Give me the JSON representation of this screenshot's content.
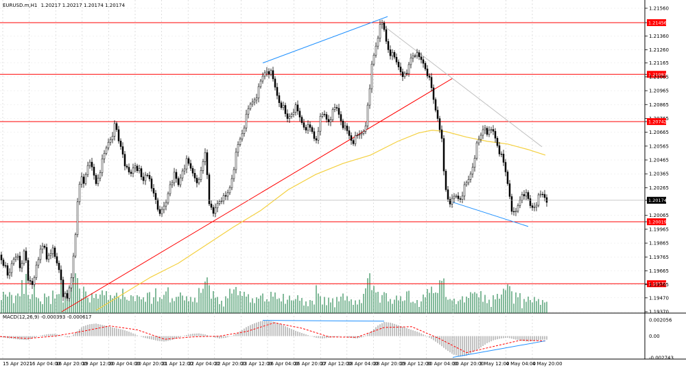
{
  "header": {
    "symbol_label": "EURUSD.m,H1",
    "ohlc_label": "1.20217 1.20217 1.20174 1.20174"
  },
  "macd_label": "MACD(12,26,9) -0.000393 -0.000617",
  "chart_data": {
    "type": "candlestick",
    "symbol": "EURUSD.m",
    "timeframe": "H1",
    "current_price": 1.20174,
    "price_axis_ticks": [
      1.2156,
      1.21456,
      1.2136,
      1.2126,
      1.21165,
      1.21083,
      1.21065,
      1.20965,
      1.20865,
      1.20765,
      1.20742,
      1.20665,
      1.20565,
      1.20465,
      1.20365,
      1.20265,
      1.20174,
      1.20065,
      1.20019,
      1.19965,
      1.19865,
      1.19765,
      1.19665,
      1.19572,
      1.19565,
      1.1947,
      1.1937
    ],
    "horizontal_levels": [
      1.21456,
      1.21083,
      1.20742,
      1.20019,
      1.19572
    ],
    "time_labels": [
      "15 Apr 2021",
      "16 Apr 04:00",
      "16 Apr 20:00",
      "19 Apr 12:00",
      "20 Apr 04:00",
      "20 Apr 20:00",
      "21 Apr 12:00",
      "22 Apr 04:00",
      "22 Apr 20:00",
      "23 Apr 12:00",
      "26 Apr 04:00",
      "26 Apr 20:00",
      "27 Apr 12:00",
      "28 Apr 04:00",
      "28 Apr 20:00",
      "29 Apr 12:00",
      "30 Apr 04:00",
      "30 Apr 20:00",
      "3 May 12:00",
      "4 May 04:00",
      "4 May 20:00"
    ],
    "close_path": [
      [
        0,
        1.1978
      ],
      [
        6,
        1.1972
      ],
      [
        12,
        1.196
      ],
      [
        18,
        1.1975
      ],
      [
        24,
        1.198
      ],
      [
        30,
        1.1965
      ],
      [
        36,
        1.1985
      ],
      [
        42,
        1.1958
      ],
      [
        48,
        1.1955
      ],
      [
        54,
        1.1975
      ],
      [
        60,
        1.198
      ],
      [
        64,
        1.1985
      ],
      [
        68,
        1.1975
      ],
      [
        72,
        1.198
      ],
      [
        76,
        1.1982
      ],
      [
        80,
        1.1975
      ],
      [
        84,
        1.197
      ],
      [
        88,
        1.1965
      ],
      [
        92,
        1.195
      ],
      [
        98,
        1.1945
      ],
      [
        104,
        1.1962
      ],
      [
        110,
        1.1995
      ],
      [
        114,
        1.202
      ],
      [
        118,
        1.2035
      ],
      [
        122,
        1.203
      ],
      [
        128,
        1.2045
      ],
      [
        134,
        1.204
      ],
      [
        140,
        1.203
      ],
      [
        146,
        1.204
      ],
      [
        152,
        1.205
      ],
      [
        158,
        1.206
      ],
      [
        163,
        1.2065
      ],
      [
        168,
        1.2072
      ],
      [
        173,
        1.206
      ],
      [
        178,
        1.2055
      ],
      [
        184,
        1.204
      ],
      [
        190,
        1.2035
      ],
      [
        196,
        1.2045
      ],
      [
        202,
        1.204
      ],
      [
        208,
        1.203
      ],
      [
        214,
        1.204
      ],
      [
        220,
        1.2025
      ],
      [
        226,
        1.202
      ],
      [
        230,
        1.2012
      ],
      [
        236,
        1.2008
      ],
      [
        242,
        1.2015
      ],
      [
        248,
        1.203
      ],
      [
        254,
        1.2035
      ],
      [
        260,
        1.2028
      ],
      [
        266,
        1.204
      ],
      [
        272,
        1.2045
      ],
      [
        278,
        1.204
      ],
      [
        284,
        1.2035
      ],
      [
        290,
        1.203
      ],
      [
        296,
        1.2045
      ],
      [
        300,
        1.2055
      ],
      [
        304,
        1.202
      ],
      [
        310,
        1.2005
      ],
      [
        316,
        1.2015
      ],
      [
        322,
        1.202
      ],
      [
        328,
        1.2018
      ],
      [
        334,
        1.2025
      ],
      [
        340,
        1.204
      ],
      [
        346,
        1.2055
      ],
      [
        352,
        1.2065
      ],
      [
        358,
        1.2075
      ],
      [
        364,
        1.2085
      ],
      [
        370,
        1.209
      ],
      [
        376,
        1.2095
      ],
      [
        382,
        1.2105
      ],
      [
        388,
        1.2112
      ],
      [
        394,
        1.211
      ],
      [
        400,
        1.21
      ],
      [
        406,
        1.209
      ],
      [
        412,
        1.2085
      ],
      [
        418,
        1.2075
      ],
      [
        424,
        1.208
      ],
      [
        430,
        1.2085
      ],
      [
        436,
        1.2078
      ],
      [
        442,
        1.2072
      ],
      [
        448,
        1.207
      ],
      [
        454,
        1.2068
      ],
      [
        460,
        1.206
      ],
      [
        466,
        1.2075
      ],
      [
        472,
        1.208
      ],
      [
        478,
        1.2075
      ],
      [
        484,
        1.208
      ],
      [
        490,
        1.2085
      ],
      [
        496,
        1.2078
      ],
      [
        502,
        1.207
      ],
      [
        508,
        1.2065
      ],
      [
        514,
        1.206
      ],
      [
        520,
        1.2062
      ],
      [
        526,
        1.2065
      ],
      [
        532,
        1.207
      ],
      [
        538,
        1.209
      ],
      [
        542,
        1.2115
      ],
      [
        546,
        1.2125
      ],
      [
        550,
        1.2135
      ],
      [
        556,
        1.2145
      ],
      [
        560,
        1.214
      ],
      [
        564,
        1.213
      ],
      [
        568,
        1.2125
      ],
      [
        574,
        1.212
      ],
      [
        580,
        1.2115
      ],
      [
        586,
        1.211
      ],
      [
        592,
        1.2105
      ],
      [
        598,
        1.212
      ],
      [
        604,
        1.2125
      ],
      [
        610,
        1.212
      ],
      [
        616,
        1.2118
      ],
      [
        622,
        1.2112
      ],
      [
        628,
        1.21
      ],
      [
        634,
        1.2085
      ],
      [
        640,
        1.2075
      ],
      [
        644,
        1.206
      ],
      [
        648,
        1.203
      ],
      [
        652,
        1.202
      ],
      [
        658,
        1.2015
      ],
      [
        664,
        1.202
      ],
      [
        670,
        1.2018
      ],
      [
        676,
        1.2025
      ],
      [
        682,
        1.203
      ],
      [
        688,
        1.204
      ],
      [
        694,
        1.2055
      ],
      [
        700,
        1.2062
      ],
      [
        706,
        1.2072
      ],
      [
        712,
        1.2065
      ],
      [
        718,
        1.2068
      ],
      [
        724,
        1.206
      ],
      [
        730,
        1.205
      ],
      [
        736,
        1.204
      ],
      [
        742,
        1.2025
      ],
      [
        746,
        1.2012
      ],
      [
        750,
        1.2005
      ],
      [
        756,
        1.2015
      ],
      [
        762,
        1.2025
      ],
      [
        768,
        1.202
      ],
      [
        774,
        1.2012
      ],
      [
        780,
        1.2015
      ],
      [
        786,
        1.202
      ],
      [
        792,
        1.2022
      ],
      [
        798,
        1.2017
      ]
    ],
    "ma_path": [
      [
        140,
        1.1938
      ],
      [
        180,
        1.195
      ],
      [
        220,
        1.1962
      ],
      [
        260,
        1.1972
      ],
      [
        300,
        1.1985
      ],
      [
        340,
        1.1998
      ],
      [
        380,
        1.201
      ],
      [
        420,
        1.2025
      ],
      [
        460,
        1.2036
      ],
      [
        500,
        1.2044
      ],
      [
        540,
        1.205
      ],
      [
        580,
        1.206
      ],
      [
        610,
        1.2066
      ],
      [
        630,
        1.2068
      ],
      [
        650,
        1.2067
      ],
      [
        680,
        1.2063
      ],
      [
        710,
        1.206
      ],
      [
        740,
        1.2058
      ],
      [
        770,
        1.2054
      ],
      [
        795,
        1.205
      ]
    ],
    "trendlines": [
      {
        "color": "#ff0000",
        "from": [
          90,
          1.1937
        ],
        "to": [
          660,
          1.21055
        ]
      },
      {
        "color": "#1e90ff",
        "from": [
          383,
          1.21165
        ],
        "to": [
          565,
          1.215
        ]
      },
      {
        "color": "#1e90ff",
        "from": [
          660,
          1.2016
        ],
        "to": [
          770,
          1.19985
        ]
      },
      {
        "color": "#c0c0c0",
        "from": [
          560,
          1.2143
        ],
        "to": [
          790,
          1.2056
        ]
      }
    ],
    "macd": {
      "label": "MACD(12,26,9) -0.000393 -0.000617",
      "axis_ticks": [
        0.002056,
        0.0,
        -0.002743
      ],
      "histogram": [
        [
          0,
          -0.0001
        ],
        [
          10,
          -0.00025
        ],
        [
          20,
          -0.00035
        ],
        [
          30,
          -0.00045
        ],
        [
          40,
          -0.0005
        ],
        [
          50,
          -0.0002
        ],
        [
          60,
          0.0001
        ],
        [
          70,
          0.00025
        ],
        [
          80,
          0.0003
        ],
        [
          90,
          5e-05
        ],
        [
          100,
          -0.0002
        ],
        [
          110,
          0.0004
        ],
        [
          120,
          0.0012
        ],
        [
          130,
          0.0015
        ],
        [
          140,
          0.0016
        ],
        [
          150,
          0.0014
        ],
        [
          160,
          0.0012
        ],
        [
          170,
          0.001
        ],
        [
          180,
          0.0008
        ],
        [
          190,
          0.0005
        ],
        [
          200,
          0.0001
        ],
        [
          210,
          -0.0002
        ],
        [
          220,
          -0.0004
        ],
        [
          230,
          -0.0006
        ],
        [
          240,
          -0.0007
        ],
        [
          250,
          -0.0005
        ],
        [
          260,
          -0.0002
        ],
        [
          270,
          0.0001
        ],
        [
          280,
          0.0003
        ],
        [
          290,
          0.00035
        ],
        [
          300,
          0.0002
        ],
        [
          310,
          -0.0001
        ],
        [
          320,
          -0.0003
        ],
        [
          330,
          -0.0002
        ],
        [
          340,
          0.0001
        ],
        [
          350,
          0.0006
        ],
        [
          360,
          0.0012
        ],
        [
          370,
          0.0016
        ],
        [
          380,
          0.0019
        ],
        [
          390,
          0.002
        ],
        [
          400,
          0.0018
        ],
        [
          410,
          0.0015
        ],
        [
          420,
          0.0011
        ],
        [
          430,
          0.0007
        ],
        [
          440,
          0.0004
        ],
        [
          450,
          0.0001
        ],
        [
          460,
          -0.0002
        ],
        [
          470,
          -0.0003
        ],
        [
          480,
          -0.0002
        ],
        [
          490,
          -0.0001
        ],
        [
          500,
          0.0
        ],
        [
          510,
          -0.0002
        ],
        [
          520,
          -0.0003
        ],
        [
          530,
          -0.0001
        ],
        [
          540,
          0.0005
        ],
        [
          550,
          0.0013
        ],
        [
          560,
          0.0018
        ],
        [
          570,
          0.0017
        ],
        [
          580,
          0.0014
        ],
        [
          590,
          0.0011
        ],
        [
          600,
          0.0008
        ],
        [
          610,
          0.0005
        ],
        [
          620,
          0.0001
        ],
        [
          630,
          -0.0004
        ],
        [
          640,
          -0.001
        ],
        [
          650,
          -0.0017
        ],
        [
          660,
          -0.0023
        ],
        [
          670,
          -0.0026
        ],
        [
          680,
          -0.0025
        ],
        [
          690,
          -0.002
        ],
        [
          700,
          -0.0015
        ],
        [
          710,
          -0.0009
        ],
        [
          720,
          -0.0005
        ],
        [
          730,
          -0.0003
        ],
        [
          740,
          -0.0002
        ],
        [
          750,
          -0.0004
        ],
        [
          760,
          -0.0006
        ],
        [
          770,
          -0.0007
        ],
        [
          780,
          -0.0006
        ],
        [
          790,
          -0.00045
        ]
      ],
      "signal": [
        [
          0,
          -5e-05
        ],
        [
          40,
          -0.0003
        ],
        [
          80,
          0.0
        ],
        [
          120,
          0.0006
        ],
        [
          160,
          0.0013
        ],
        [
          200,
          0.0008
        ],
        [
          240,
          -0.0004
        ],
        [
          280,
          -0.0001
        ],
        [
          320,
          0.0
        ],
        [
          360,
          0.0006
        ],
        [
          400,
          0.0017
        ],
        [
          440,
          0.001
        ],
        [
          480,
          -0.0001
        ],
        [
          520,
          -0.00015
        ],
        [
          560,
          0.0011
        ],
        [
          600,
          0.0012
        ],
        [
          640,
          -0.0003
        ],
        [
          680,
          -0.0021
        ],
        [
          720,
          -0.0013
        ],
        [
          760,
          -0.0005
        ],
        [
          795,
          -0.00062
        ]
      ]
    }
  }
}
